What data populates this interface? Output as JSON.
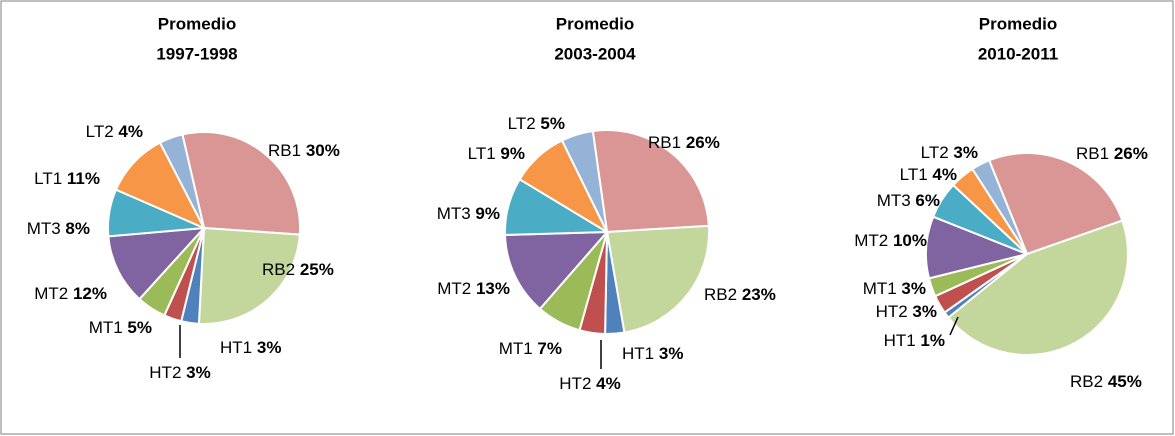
{
  "chart_data": [
    {
      "type": "pie",
      "title": "Promedio",
      "subtitle": "1997-1998",
      "categories": [
        "RB1",
        "RB2",
        "HT1",
        "HT2",
        "MT1",
        "MT2",
        "MT3",
        "LT1",
        "LT2"
      ],
      "values": [
        30,
        25,
        3,
        3,
        5,
        12,
        8,
        11,
        4
      ],
      "value_labels": [
        "30%",
        "25%",
        "3%",
        "3%",
        "5%",
        "12%",
        "8%",
        "11%",
        "4%"
      ],
      "colors": [
        "#d99694",
        "#c3d69b",
        "#4f81bd",
        "#c0504d",
        "#9bbb59",
        "#8064a2",
        "#4bacc6",
        "#f79646",
        "#95b3d7"
      ]
    },
    {
      "type": "pie",
      "title": "Promedio",
      "subtitle": "2003-2004",
      "categories": [
        "RB1",
        "RB2",
        "HT1",
        "HT2",
        "MT1",
        "MT2",
        "MT3",
        "LT1",
        "LT2"
      ],
      "values": [
        26,
        23,
        3,
        4,
        7,
        13,
        9,
        9,
        5
      ],
      "value_labels": [
        "26%",
        "23%",
        "3%",
        "4%",
        "7%",
        "13%",
        "9%",
        "9%",
        "5%"
      ],
      "colors": [
        "#d99694",
        "#c3d69b",
        "#4f81bd",
        "#c0504d",
        "#9bbb59",
        "#8064a2",
        "#4bacc6",
        "#f79646",
        "#95b3d7"
      ]
    },
    {
      "type": "pie",
      "title": "Promedio",
      "subtitle": "2010-2011",
      "categories": [
        "RB1",
        "RB2",
        "HT1",
        "HT2",
        "MT1",
        "MT2",
        "MT3",
        "LT1",
        "LT2"
      ],
      "values": [
        26,
        45,
        1,
        3,
        3,
        10,
        6,
        4,
        3
      ],
      "value_labels": [
        "26%",
        "45%",
        "1%",
        "3%",
        "3%",
        "10%",
        "6%",
        "4%",
        "3%"
      ],
      "colors": [
        "#d99694",
        "#c3d69b",
        "#4f81bd",
        "#c0504d",
        "#9bbb59",
        "#8064a2",
        "#4bacc6",
        "#f79646",
        "#95b3d7"
      ]
    }
  ]
}
